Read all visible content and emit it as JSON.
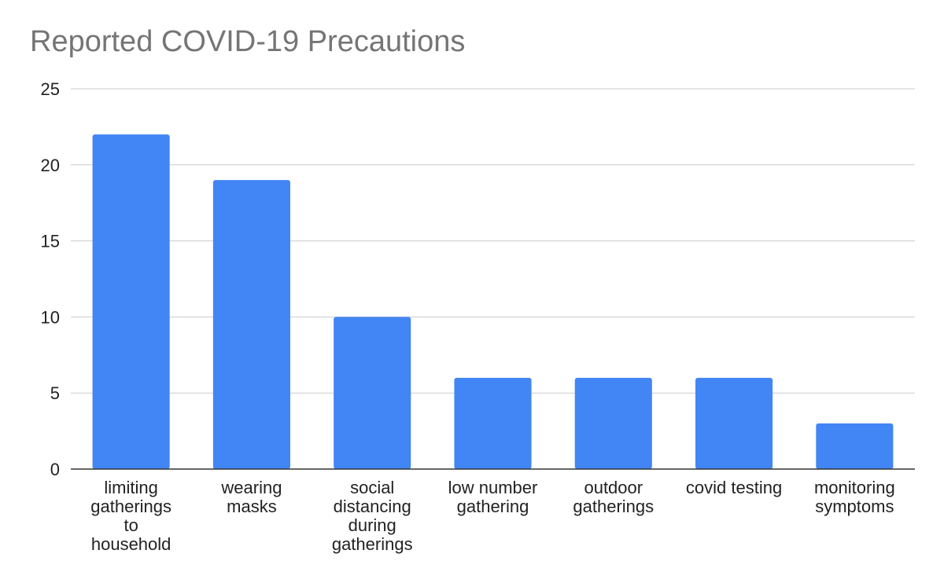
{
  "chart_data": {
    "type": "bar",
    "title": "Reported COVID-19 Precautions",
    "xlabel": "",
    "ylabel": "",
    "ylim": [
      0,
      25
    ],
    "yticks": [
      0,
      5,
      10,
      15,
      20,
      25
    ],
    "grid": true,
    "legend": "none",
    "bar_color": "#4285f4",
    "categories": [
      [
        "limiting",
        "gatherings",
        "to",
        "household"
      ],
      [
        "wearing",
        "masks"
      ],
      [
        "social",
        "distancing",
        "during",
        "gatherings"
      ],
      [
        "low number",
        "gathering"
      ],
      [
        "outdoor",
        "gatherings"
      ],
      [
        "covid testing"
      ],
      [
        "monitoring",
        "symptoms"
      ]
    ],
    "values": [
      22,
      19,
      10,
      6,
      6,
      6,
      3
    ]
  }
}
